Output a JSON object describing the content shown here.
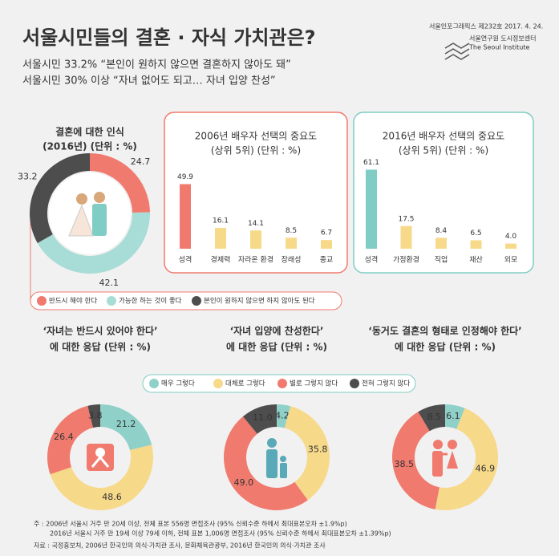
{
  "header": {
    "title": "서울시민들의 결혼 · 자식 가치관은?",
    "subtitle": [
      "서울시민 33.2% “본인이 원하지 않으면 결혼하지 않아도 돼”",
      "서울시민 30% 이상 “자녀 없어도 되고… 자녀 입양 찬성”"
    ],
    "publisher": [
      "서울인포그래픽스 제232호 2017. 4. 24.",
      "서울연구원 도시정보센터",
      "The Seoul Institute"
    ]
  },
  "chart_data": [
    {
      "type": "donut",
      "title": [
        "결혼에 대한 인식",
        "(2016년) (단위 : %)"
      ],
      "categories": [
        "반드시 해야 한다",
        "가능한 하는 것이 좋다",
        "본인이 원하지 않으면 하지 않아도 된다"
      ],
      "values": [
        24.7,
        42.1,
        33.2
      ],
      "colors": [
        "#f07a6e",
        "#a8dcd6",
        "#4d4d4d"
      ]
    },
    {
      "type": "bar",
      "title": [
        "2006년 배우자 선택의 중요도",
        "(상위 5위) (단위 : %)"
      ],
      "categories": [
        "성격",
        "경제력",
        "자라온 환경",
        "장래성",
        "종교"
      ],
      "values": [
        49.9,
        16.1,
        14.1,
        8.5,
        6.7
      ],
      "colors": [
        "#f07a6e",
        "#f7d98a",
        "#f7d98a",
        "#f7d98a",
        "#f7d98a"
      ],
      "ylim": [
        0,
        62
      ],
      "border": "#f07a6e"
    },
    {
      "type": "bar",
      "title": [
        "2016년 배우자 선택의 중요도",
        "(상위 5위) (단위 : %)"
      ],
      "categories": [
        "성격",
        "가정환경",
        "직업",
        "재산",
        "외모"
      ],
      "values": [
        61.1,
        17.5,
        8.4,
        6.5,
        4
      ],
      "value_labels": [
        "61.1",
        "17.5",
        "8.4",
        "6.5",
        "4.0"
      ],
      "colors": [
        "#7fcdc4",
        "#f7d98a",
        "#f7d98a",
        "#f7d98a",
        "#f7d98a"
      ],
      "ylim": [
        0,
        62
      ],
      "border": "#7fcdc4"
    },
    {
      "type": "donut",
      "title": [
        "‘자녀는 반드시 있어야 한다’",
        "에 대한 응답 (단위 : %)"
      ],
      "categories": [
        "매우 그렇다",
        "대체로 그렇다",
        "별로 그렇지 않다",
        "전혀 그렇지 않다"
      ],
      "values": [
        21.2,
        48.6,
        26.4,
        3.8
      ],
      "colors": [
        "#8fd0c8",
        "#f7d98a",
        "#f07a6e",
        "#4d4d4d"
      ]
    },
    {
      "type": "donut",
      "title": [
        "‘자녀 입양에 찬성한다’",
        "에 대한 응답 (단위 : %)"
      ],
      "categories": [
        "매우 그렇다",
        "대체로 그렇다",
        "별로 그렇지 않다",
        "전혀 그렇지 않다"
      ],
      "values": [
        4.2,
        35.8,
        49,
        11
      ],
      "value_labels": [
        "4.2",
        "35.8",
        "49.0",
        "11.0"
      ],
      "colors": [
        "#8fd0c8",
        "#f7d98a",
        "#f07a6e",
        "#4d4d4d"
      ]
    },
    {
      "type": "donut",
      "title": [
        "‘동거도 결혼의 형태로 인정해야 한다’",
        "에 대한 응답 (단위 : %)"
      ],
      "categories": [
        "매우 그렇다",
        "대체로 그렇다",
        "별로 그렇지 않다",
        "전혀 그렇지 않다"
      ],
      "values": [
        6.1,
        46.9,
        38.5,
        8.5
      ],
      "colors": [
        "#8fd0c8",
        "#f7d98a",
        "#f07a6e",
        "#4d4d4d"
      ]
    }
  ],
  "notes": [
    "주 : 2006년 서울시 거주 만 20세 이상, 전체 표본 556명 면접조사 (95% 신뢰수준 하에서 최대표본오차 ±1.9%p)",
    "2016년 서울시 거주 만 19세 이상 79세 이하, 전체 표본 1,006명 면접조사 (95% 신뢰수준 하에서 최대표본오차 ±1.39%p)",
    "자료 : 국정홍보처, 2006년 한국인의 의식·가치관 조사, 문화체육관광부, 2016년 한국인의 의식·가치관 조사"
  ]
}
